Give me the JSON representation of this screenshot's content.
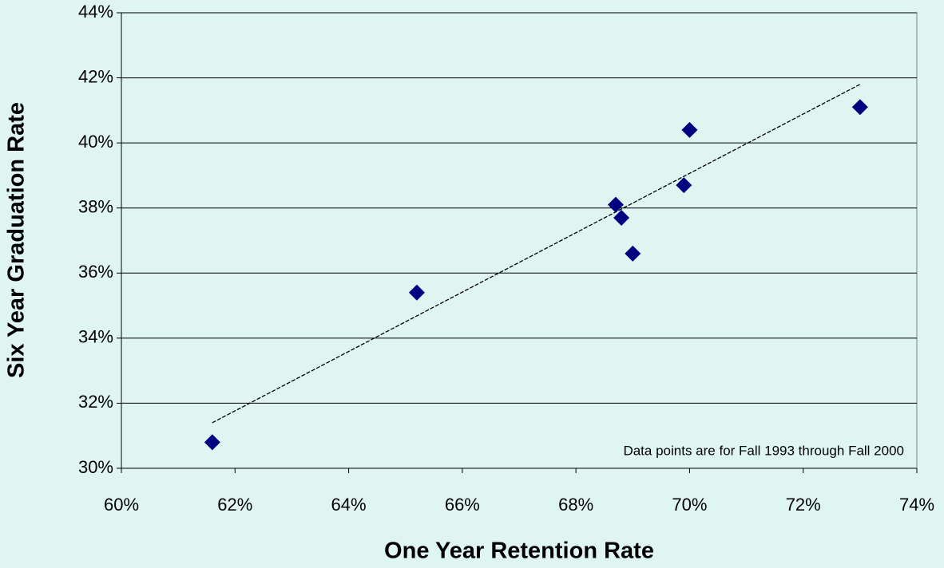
{
  "chart_data": {
    "type": "scatter",
    "x_label": "One Year Retention Rate",
    "y_label": "Six Year Graduation Rate",
    "annotation": "Data points are for Fall 1993 through Fall 2000",
    "x": [
      61.6,
      65.2,
      68.7,
      68.8,
      69.0,
      69.9,
      70.0,
      73.0
    ],
    "values": [
      30.8,
      35.4,
      38.1,
      37.7,
      36.6,
      38.7,
      40.4,
      41.1
    ],
    "color": "#000080",
    "trendline": {
      "x": [
        61.6,
        73.0
      ],
      "values": [
        31.4,
        41.8
      ],
      "color": "#000000"
    },
    "xlim": [
      60,
      74
    ],
    "ylim": [
      30,
      44
    ],
    "xticks": [
      {
        "value": 60,
        "label": "60%"
      },
      {
        "value": 62,
        "label": "62%"
      },
      {
        "value": 64,
        "label": "64%"
      },
      {
        "value": 66,
        "label": "66%"
      },
      {
        "value": 68,
        "label": "68%"
      },
      {
        "value": 70,
        "label": "70%"
      },
      {
        "value": 72,
        "label": "72%"
      },
      {
        "value": 74,
        "label": "74%"
      }
    ],
    "yticks": [
      {
        "value": 30,
        "label": "30%"
      },
      {
        "value": 32,
        "label": "32%"
      },
      {
        "value": 34,
        "label": "34%"
      },
      {
        "value": 36,
        "label": "36%"
      },
      {
        "value": 38,
        "label": "38%"
      },
      {
        "value": 40,
        "label": "40%"
      },
      {
        "value": 42,
        "label": "42%"
      },
      {
        "value": 44,
        "label": "44%"
      }
    ],
    "grid": true
  }
}
